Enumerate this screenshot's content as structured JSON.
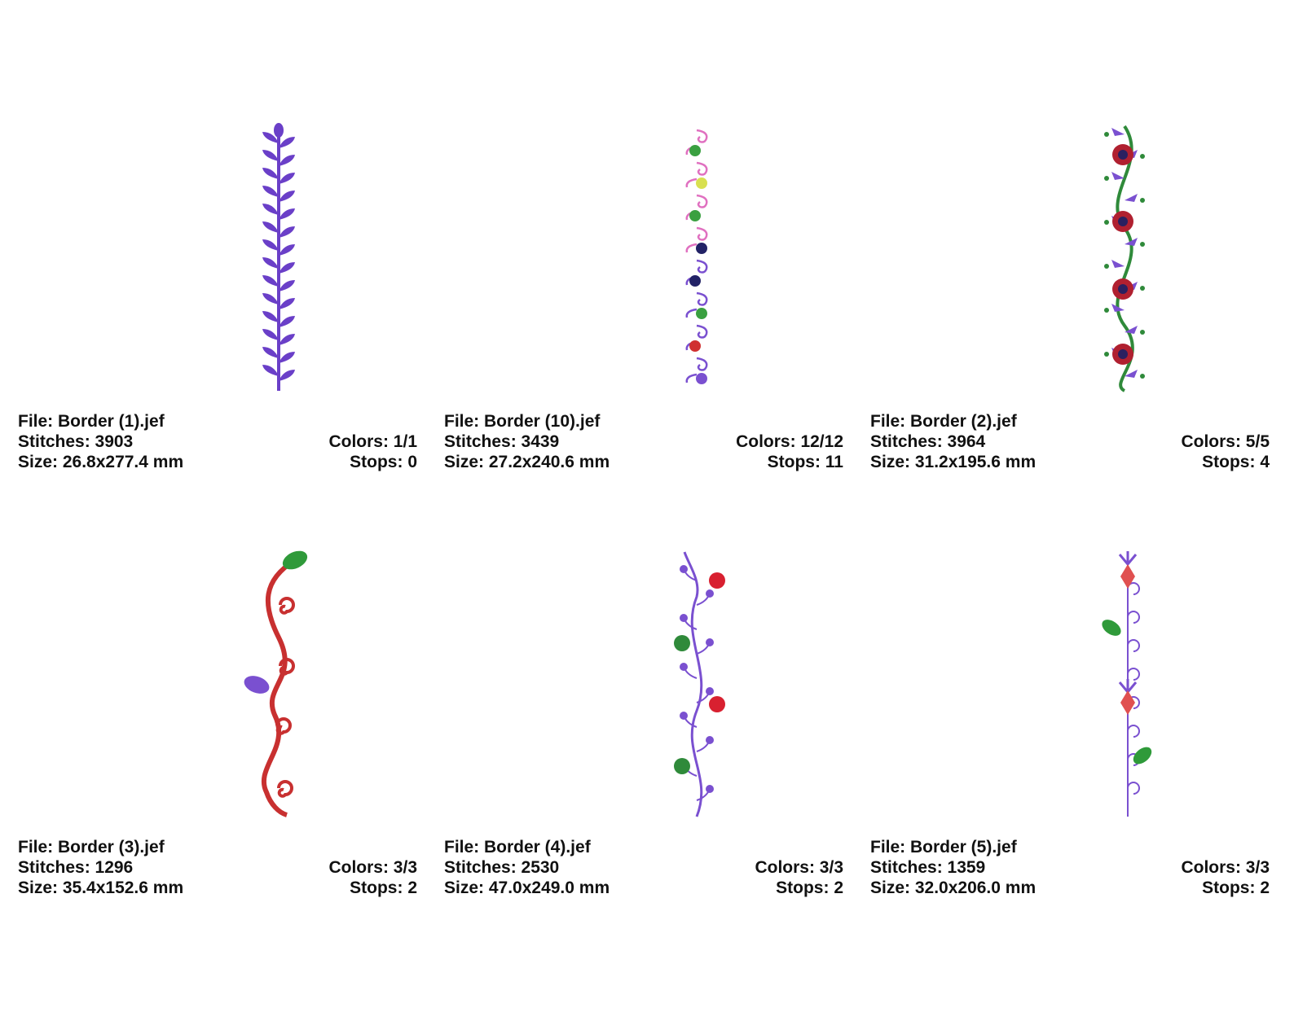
{
  "designs": [
    {
      "file": "File: Border (1).jef",
      "stitches": "Stitches: 3903",
      "size": "Size: 26.8x277.4 mm",
      "colors": "Colors: 1/1",
      "stops": "Stops: 0",
      "icon": "purple-leaf-vine-icon",
      "thread_colors": [
        "#6a3fc8"
      ]
    },
    {
      "file": "File: Border (10).jef",
      "stitches": "Stitches: 3439",
      "size": "Size: 27.2x240.6 mm",
      "colors": "Colors: 12/12",
      "stops": "Stops: 11",
      "icon": "swirl-dot-border-icon",
      "thread_colors": [
        "#e070c0",
        "#7a50d0",
        "#3aa040",
        "#d8e050",
        "#222266",
        "#d03030"
      ]
    },
    {
      "file": "File: Border (2).jef",
      "stitches": "Stitches: 3964",
      "size": "Size: 31.2x195.6 mm",
      "colors": "Colors: 5/5",
      "stops": "Stops: 4",
      "icon": "rose-vine-border-icon",
      "thread_colors": [
        "#2f8a3a",
        "#7a50d0",
        "#b02030",
        "#2a2060"
      ]
    },
    {
      "file": "File: Border (3).jef",
      "stitches": "Stitches: 1296",
      "size": "Size: 35.4x152.6 mm",
      "colors": "Colors: 3/3",
      "stops": "Stops: 2",
      "icon": "red-swirl-vine-icon",
      "thread_colors": [
        "#c83030",
        "#2f9a3a",
        "#7a50d0"
      ]
    },
    {
      "file": "File: Border (4).jef",
      "stitches": "Stitches: 2530",
      "size": "Size: 47.0x249.0 mm",
      "colors": "Colors: 3/3",
      "stops": "Stops: 2",
      "icon": "berry-flower-vine-icon",
      "thread_colors": [
        "#7a50d0",
        "#d82030",
        "#2f8a3a"
      ]
    },
    {
      "file": "File: Border (5).jef",
      "stitches": "Stitches: 1359",
      "size": "Size: 32.0x206.0 mm",
      "colors": "Colors: 3/3",
      "stops": "Stops: 2",
      "icon": "diamond-leaf-border-icon",
      "thread_colors": [
        "#7a50d0",
        "#e05050",
        "#2f9a3a"
      ]
    }
  ]
}
